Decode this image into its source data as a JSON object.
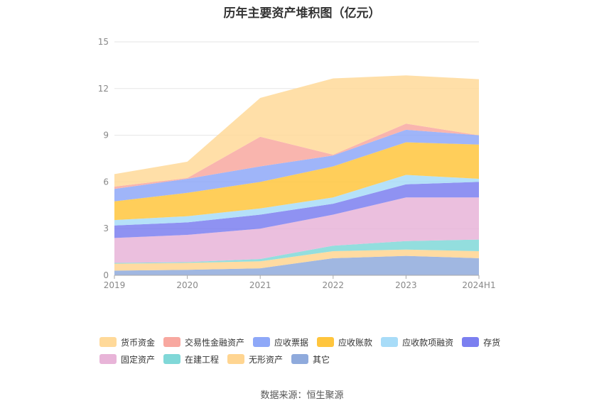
{
  "chart_data": {
    "type": "area",
    "stacked": true,
    "title": "历年主要资产堆积图（亿元）",
    "categories": [
      "2019",
      "2020",
      "2021",
      "2022",
      "2023",
      "2024H1"
    ],
    "ylim": [
      0,
      15
    ],
    "yticks": [
      "0",
      "3",
      "6",
      "9",
      "12",
      "15"
    ],
    "series": [
      {
        "name": "其它",
        "color": "#8faadc",
        "values": [
          0.3,
          0.35,
          0.45,
          1.1,
          1.25,
          1.1
        ]
      },
      {
        "name": "无形资产",
        "color": "#ffd591",
        "values": [
          0.45,
          0.45,
          0.45,
          0.45,
          0.4,
          0.45
        ]
      },
      {
        "name": "在建工程",
        "color": "#80d8d8",
        "values": [
          0.05,
          0.05,
          0.15,
          0.35,
          0.55,
          0.75
        ]
      },
      {
        "name": "固定资产",
        "color": "#e8b4d8",
        "values": [
          1.6,
          1.75,
          1.95,
          2.0,
          2.8,
          2.7
        ]
      },
      {
        "name": "存货",
        "color": "#7b7ff0",
        "values": [
          0.8,
          0.8,
          0.9,
          0.7,
          0.85,
          1.0
        ]
      },
      {
        "name": "应收款项融资",
        "color": "#a8dcf8",
        "values": [
          0.35,
          0.4,
          0.4,
          0.4,
          0.6,
          0.2
        ]
      },
      {
        "name": "应收账款",
        "color": "#ffc53d",
        "values": [
          1.2,
          1.5,
          1.7,
          2.0,
          2.1,
          2.2
        ]
      },
      {
        "name": "应收票据",
        "color": "#8ea8f8",
        "values": [
          0.8,
          0.9,
          1.0,
          0.7,
          0.8,
          0.6
        ]
      },
      {
        "name": "交易性金融资产",
        "color": "#f8a8a0",
        "values": [
          0.15,
          0.05,
          1.9,
          0.05,
          0.4,
          0.0
        ]
      },
      {
        "name": "货币资金",
        "color": "#ffd999",
        "values": [
          0.8,
          1.05,
          2.5,
          4.9,
          3.1,
          3.6
        ]
      }
    ],
    "legend": [
      "货币资金",
      "交易性金融资产",
      "应收票据",
      "应收账款",
      "应收款项融资",
      "存货",
      "固定资产",
      "在建工程",
      "无形资产",
      "其它"
    ]
  },
  "source": "数据来源：恒生聚源"
}
